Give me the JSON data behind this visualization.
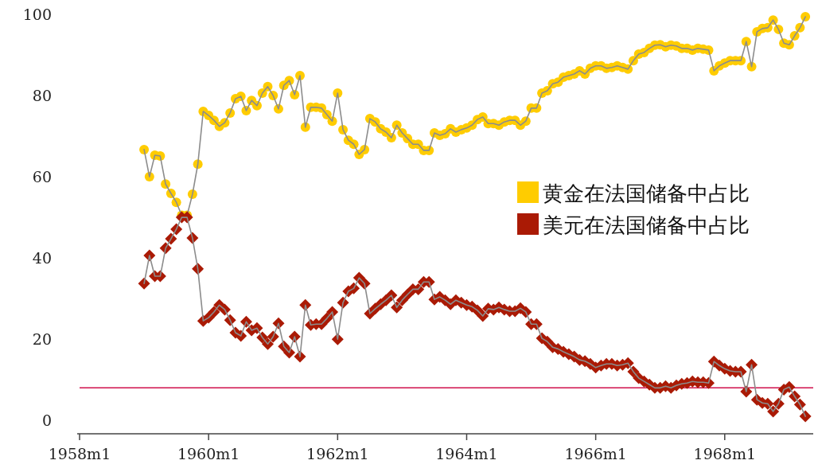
{
  "chart_data": {
    "type": "line",
    "line_style": "solid",
    "legend": "right",
    "x": [
      "1959-01",
      "1959-02",
      "1959-03",
      "1959-04",
      "1959-05",
      "1959-06",
      "1959-07",
      "1959-08",
      "1959-09",
      "1959-10",
      "1959-11",
      "1959-12",
      "1960-01",
      "1960-02",
      "1960-03",
      "1960-04",
      "1960-05",
      "1960-06",
      "1960-07",
      "1960-08",
      "1960-09",
      "1960-10",
      "1960-11",
      "1960-12",
      "1961-01",
      "1961-02",
      "1961-03",
      "1961-04",
      "1961-05",
      "1961-06",
      "1961-07",
      "1961-08",
      "1961-09",
      "1961-10",
      "1961-11",
      "1961-12",
      "1962-01",
      "1962-02",
      "1962-03",
      "1962-04",
      "1962-05",
      "1962-06",
      "1962-07",
      "1962-08",
      "1962-09",
      "1962-10",
      "1962-11",
      "1962-12",
      "1963-01",
      "1963-02",
      "1963-03",
      "1963-04",
      "1963-05",
      "1963-06",
      "1963-07",
      "1963-08",
      "1963-09",
      "1963-10",
      "1963-11",
      "1963-12",
      "1964-01",
      "1964-02",
      "1964-03",
      "1964-04",
      "1964-05",
      "1964-06",
      "1964-07",
      "1964-08",
      "1964-09",
      "1964-10",
      "1964-11",
      "1964-12",
      "1965-01",
      "1965-02",
      "1965-03",
      "1965-04",
      "1965-05",
      "1965-06",
      "1965-07",
      "1965-08",
      "1965-09",
      "1965-10",
      "1965-11",
      "1965-12",
      "1966-01",
      "1966-02",
      "1966-03",
      "1966-04",
      "1966-05",
      "1966-06",
      "1966-07",
      "1966-08",
      "1966-09",
      "1966-10",
      "1966-11",
      "1966-12",
      "1967-01",
      "1967-02",
      "1967-03",
      "1967-04",
      "1967-05",
      "1967-06",
      "1967-07",
      "1967-08",
      "1967-09",
      "1967-10",
      "1967-11",
      "1967-12",
      "1968-01",
      "1968-02",
      "1968-03",
      "1968-04",
      "1968-05",
      "1968-06",
      "1968-07",
      "1968-08",
      "1968-09",
      "1968-10",
      "1968-11",
      "1968-12",
      "1969-01",
      "1969-02",
      "1969-03",
      "1969-04"
    ],
    "xlim": [
      "1958-01",
      "1969-05-15"
    ],
    "xticks": [
      {
        "value": "1958-01",
        "label": "1958m1"
      },
      {
        "value": "1960-01",
        "label": "1960m1"
      },
      {
        "value": "1962-01",
        "label": "1962m1"
      },
      {
        "value": "1964-01",
        "label": "1964m1"
      },
      {
        "value": "1966-01",
        "label": "1966m1"
      },
      {
        "value": "1968-01",
        "label": "1968m1"
      }
    ],
    "ylim": [
      -3.3,
      100
    ],
    "yticks": [
      0,
      20,
      40,
      60,
      80,
      100
    ],
    "ref_lines": [
      {
        "axis": "y",
        "value": 8,
        "color": "#d0104c"
      }
    ],
    "series": [
      {
        "name": "黄金在法国储备中占比",
        "color": "#ffcc00",
        "marker": "circle",
        "values": [
          66.7,
          60.0,
          65.3,
          65.1,
          58.2,
          55.9,
          53.7,
          50.5,
          50.5,
          55.7,
          63.1,
          76.1,
          75.1,
          73.9,
          72.4,
          73.3,
          75.7,
          79.2,
          79.8,
          76.3,
          78.8,
          77.5,
          80.6,
          82.2,
          80.0,
          76.7,
          82.5,
          83.7,
          80.2,
          84.9,
          72.2,
          77.1,
          77.1,
          76.9,
          75.3,
          73.7,
          80.6,
          71.6,
          69.0,
          68.0,
          65.5,
          66.7,
          74.3,
          73.5,
          71.8,
          71.0,
          69.6,
          72.7,
          70.8,
          69.4,
          68.0,
          68.0,
          66.5,
          66.5,
          70.8,
          70.2,
          70.6,
          71.8,
          71.0,
          71.6,
          72.0,
          72.7,
          74.1,
          74.7,
          73.1,
          73.1,
          72.7,
          73.5,
          73.9,
          73.9,
          72.7,
          73.7,
          76.9,
          76.9,
          80.6,
          81.2,
          82.9,
          83.3,
          84.5,
          84.9,
          85.3,
          86.1,
          85.3,
          86.7,
          87.3,
          87.3,
          86.7,
          86.9,
          87.3,
          86.9,
          86.5,
          88.6,
          90.2,
          90.6,
          91.6,
          92.4,
          92.5,
          92.0,
          92.4,
          92.2,
          91.6,
          91.6,
          91.2,
          91.6,
          91.4,
          91.2,
          86.1,
          87.3,
          88.0,
          88.6,
          88.6,
          88.6,
          93.3,
          87.1,
          95.7,
          96.5,
          96.7,
          98.6,
          96.3,
          92.9,
          92.5,
          94.7,
          96.7,
          99.4
        ]
      },
      {
        "name": "美元在法国储备中占比",
        "color": "#aa1a05",
        "marker": "diamond",
        "values": [
          33.7,
          40.6,
          35.5,
          35.5,
          42.4,
          44.7,
          47.1,
          50.0,
          50.0,
          44.9,
          37.3,
          24.5,
          25.3,
          26.7,
          28.4,
          27.3,
          24.7,
          21.6,
          20.8,
          24.3,
          22.2,
          22.7,
          20.4,
          18.8,
          20.6,
          23.9,
          18.2,
          16.7,
          20.6,
          15.7,
          28.4,
          23.5,
          23.7,
          23.7,
          25.1,
          26.7,
          20.0,
          29.0,
          31.8,
          32.5,
          35.1,
          33.7,
          26.3,
          27.5,
          28.6,
          29.6,
          30.8,
          27.8,
          29.6,
          31.0,
          32.3,
          32.3,
          34.1,
          34.1,
          29.8,
          30.4,
          29.6,
          28.6,
          29.6,
          29.0,
          28.4,
          28.0,
          27.1,
          25.7,
          27.5,
          27.3,
          27.8,
          27.3,
          26.9,
          26.9,
          27.6,
          26.7,
          23.7,
          23.7,
          20.2,
          19.4,
          18.0,
          17.6,
          16.9,
          16.3,
          15.7,
          14.9,
          14.6,
          13.9,
          13.0,
          13.5,
          13.9,
          13.9,
          13.5,
          13.7,
          14.1,
          12.0,
          10.4,
          9.6,
          8.8,
          8.0,
          8.0,
          8.4,
          8.0,
          8.6,
          9.0,
          9.2,
          9.6,
          9.4,
          9.4,
          9.2,
          14.5,
          13.5,
          12.7,
          12.2,
          12.0,
          12.0,
          7.1,
          13.7,
          5.1,
          4.3,
          4.1,
          2.2,
          4.1,
          7.6,
          8.2,
          5.9,
          3.9,
          1.0
        ]
      }
    ]
  }
}
